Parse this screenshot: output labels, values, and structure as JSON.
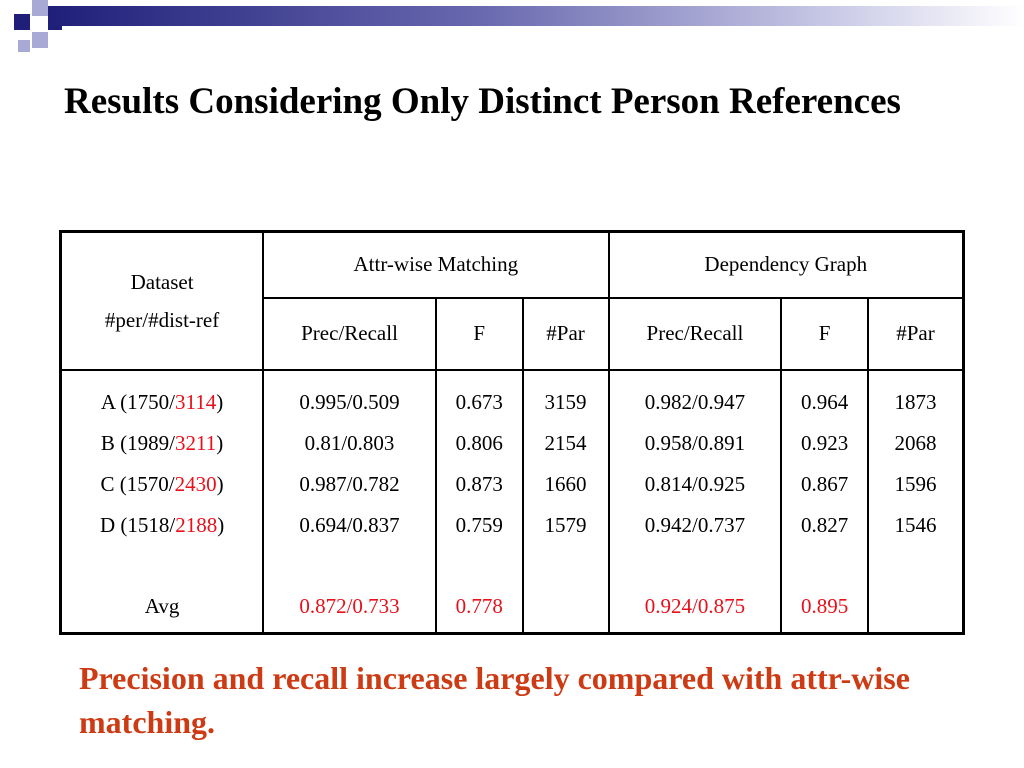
{
  "title": "Results Considering Only Distinct Person References",
  "table": {
    "header_dataset_line1": "Dataset",
    "header_dataset_line2": "#per/#dist-ref",
    "group1": "Attr-wise Matching",
    "group2": "Dependency Graph",
    "subheaders": [
      "Prec/Recall",
      "F",
      "#Par",
      "Prec/Recall",
      "F",
      "#Par"
    ],
    "rows": [
      {
        "name": "A",
        "per": "1750",
        "dist": "3114",
        "attr_pr": "0.995/0.509",
        "attr_f": "0.673",
        "attr_par": "3159",
        "dep_pr": "0.982/0.947",
        "dep_f": "0.964",
        "dep_par": "1873"
      },
      {
        "name": "B",
        "per": "1989",
        "dist": "3211",
        "attr_pr": "0.81/0.803",
        "attr_f": "0.806",
        "attr_par": "2154",
        "dep_pr": "0.958/0.891",
        "dep_f": "0.923",
        "dep_par": "2068"
      },
      {
        "name": "C",
        "per": "1570",
        "dist": "2430",
        "attr_pr": "0.987/0.782",
        "attr_f": "0.873",
        "attr_par": "1660",
        "dep_pr": "0.814/0.925",
        "dep_f": "0.867",
        "dep_par": "1596"
      },
      {
        "name": "D",
        "per": "1518",
        "dist": "2188",
        "attr_pr": "0.694/0.837",
        "attr_f": "0.759",
        "attr_par": "1579",
        "dep_pr": "0.942/0.737",
        "dep_f": "0.827",
        "dep_par": "1546"
      }
    ],
    "avg": {
      "label": "Avg",
      "attr_pr": "0.872/0.733",
      "attr_f": "0.778",
      "dep_pr": "0.924/0.875",
      "dep_f": "0.895"
    }
  },
  "caption": "Precision and recall increase largely compared with attr-wise matching.",
  "colors": {
    "highlight": "#e8101a",
    "caption": "#cc3b14",
    "accent": "#1f1f7a"
  }
}
